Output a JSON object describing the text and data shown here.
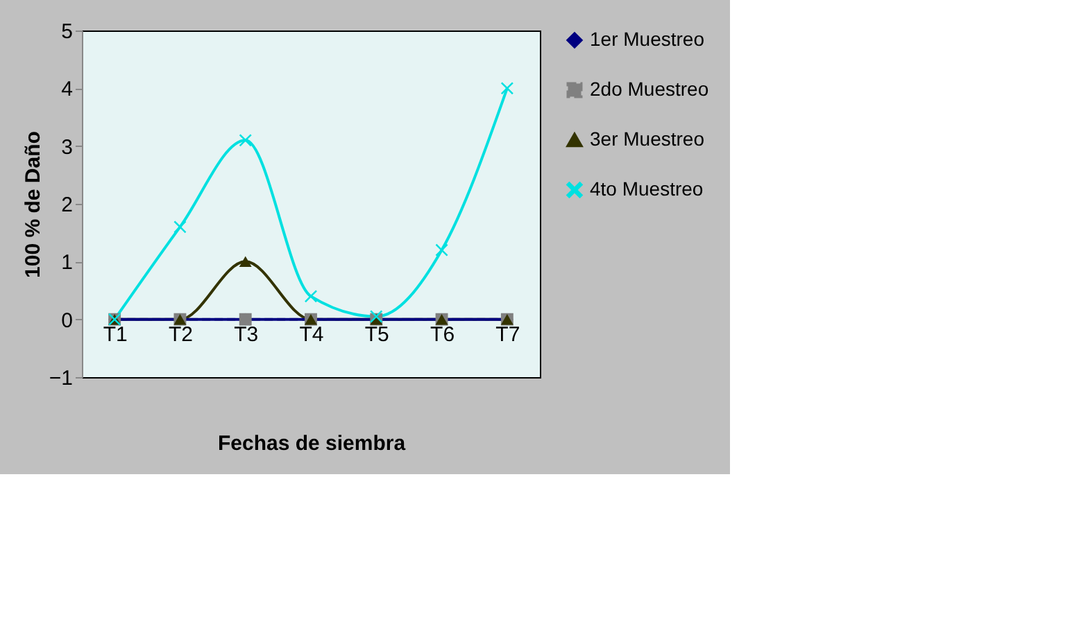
{
  "chart_data": {
    "type": "line",
    "xlabel": "Fechas de siembra",
    "ylabel": "100 % de Daño",
    "categories": [
      "T1",
      "T2",
      "T3",
      "T4",
      "T5",
      "T6",
      "T7"
    ],
    "ylim": [
      -1,
      5
    ],
    "yticks": [
      -1,
      0,
      1,
      2,
      3,
      4,
      5
    ],
    "grid": false,
    "legend": "right",
    "series": [
      {
        "name": "1er Muestreo",
        "color": "#000080",
        "marker": "diamond",
        "line_style": "solid",
        "values": [
          0,
          0,
          0,
          0,
          0,
          0,
          0
        ]
      },
      {
        "name": "2do Muestreo",
        "color": "#808080",
        "marker": "square",
        "line_style": "dashed",
        "values": [
          0,
          0,
          0,
          0,
          0,
          0,
          0
        ]
      },
      {
        "name": "3er Muestreo",
        "color": "#333300",
        "marker": "triangle",
        "line_style": "solid",
        "values": [
          0,
          0,
          1,
          0,
          0,
          0,
          0
        ]
      },
      {
        "name": "4to Muestreo",
        "color": "#00e0e0",
        "marker": "cross",
        "line_style": "solid",
        "values": [
          0,
          1.6,
          3.1,
          0.4,
          0.05,
          1.2,
          4
        ]
      }
    ]
  }
}
